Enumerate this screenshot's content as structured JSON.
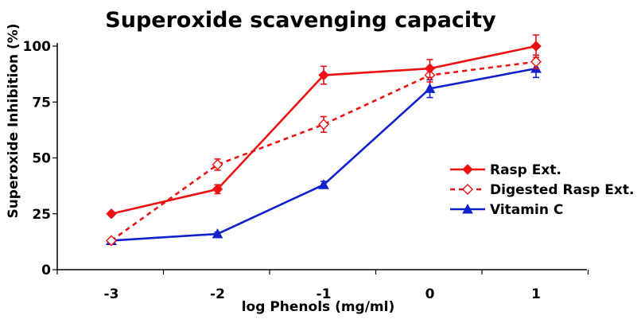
{
  "chart_data": {
    "type": "line",
    "title": "Superoxide scavenging capacity",
    "xlabel": "log Phenols (mg/ml)",
    "ylabel": "Superoxide Inhibition (%)",
    "x_categories": [
      "-3",
      "-2",
      "-1",
      "0",
      "1"
    ],
    "y_ticks": [
      0,
      25,
      50,
      75,
      100
    ],
    "ylim": [
      0,
      100
    ],
    "grid": false,
    "legend_position": "right",
    "series": [
      {
        "name": "Rasp Ext.",
        "color": "#ee1111",
        "line_style": "solid",
        "marker": "filled-diamond",
        "values": [
          25,
          36,
          87,
          90,
          100
        ],
        "errors": [
          0.8,
          2,
          4,
          4,
          5
        ]
      },
      {
        "name": "Digested Rasp Ext.",
        "color": "#ee1111",
        "line_style": "dashed",
        "marker": "open-diamond",
        "values": [
          13,
          47,
          65,
          87,
          93
        ],
        "errors": [
          0.5,
          2.5,
          3.5,
          3,
          3
        ]
      },
      {
        "name": "Vitamin C",
        "color": "#1122cc",
        "line_style": "solid",
        "marker": "filled-triangle",
        "values": [
          13,
          16,
          38,
          81,
          90
        ],
        "errors": [
          0.5,
          0.8,
          1.5,
          4,
          4
        ]
      }
    ]
  }
}
